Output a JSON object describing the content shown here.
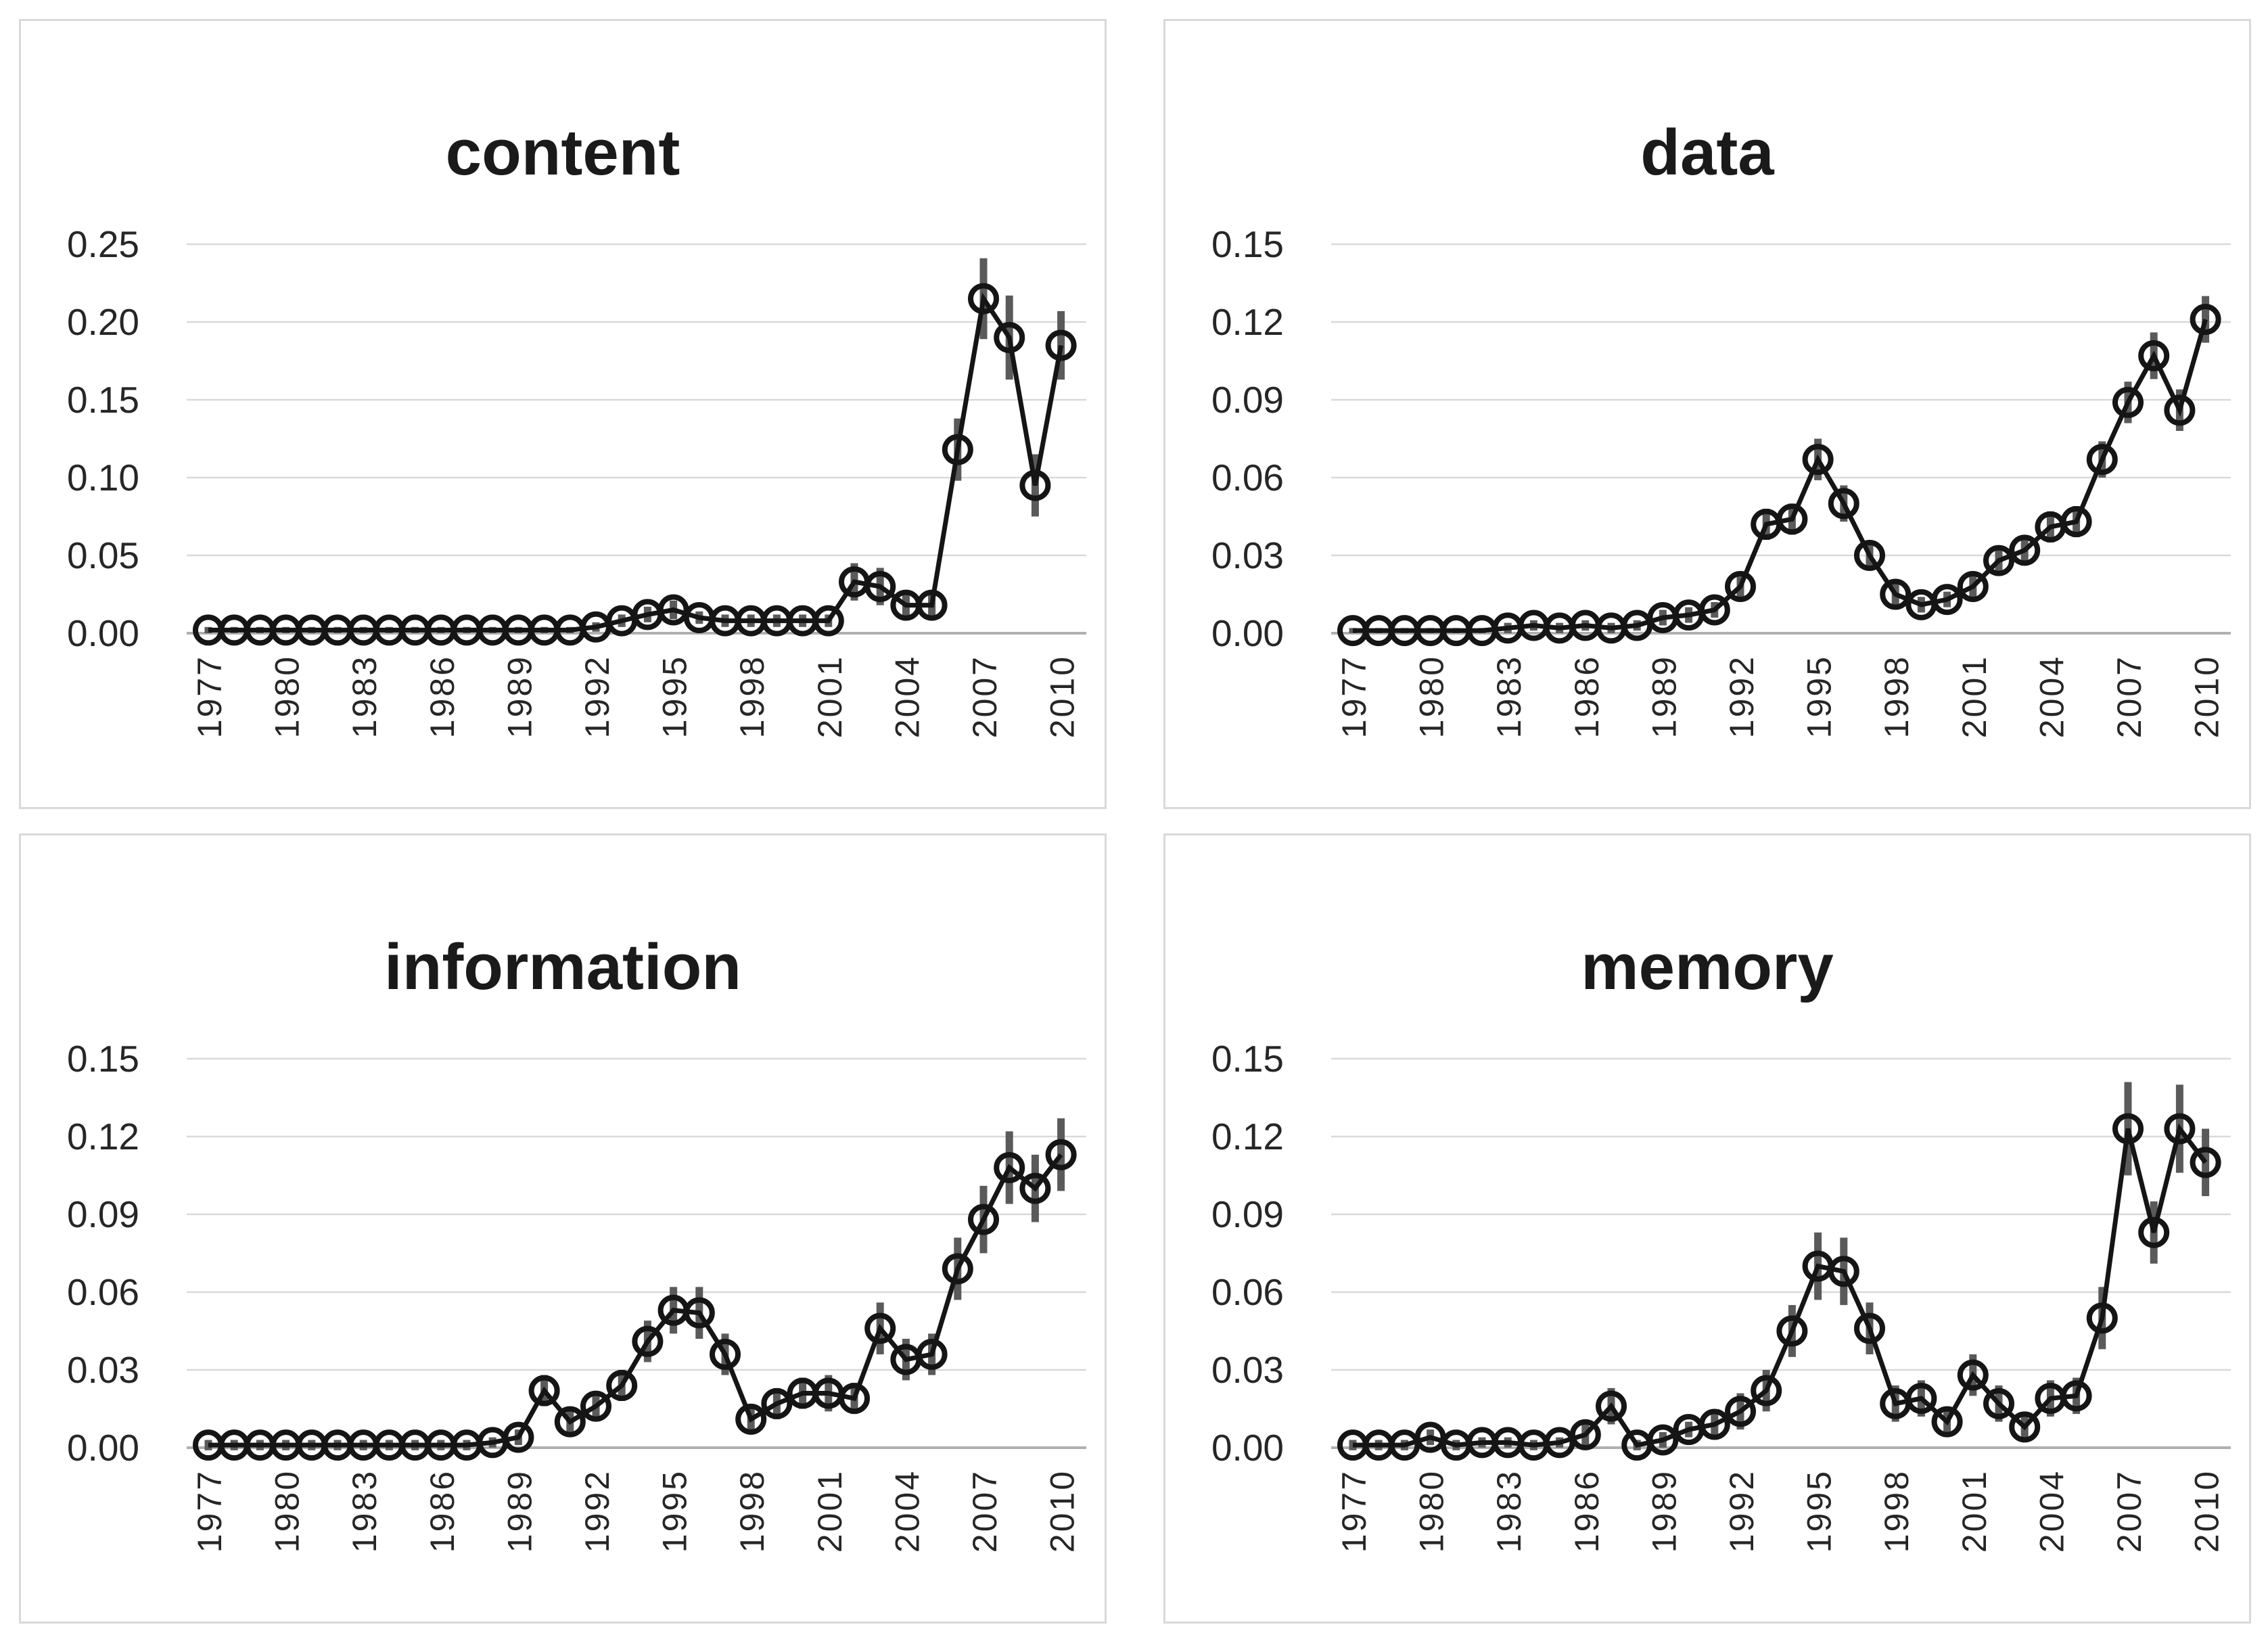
{
  "page": {
    "background": "#ffffff"
  },
  "style": {
    "line_color": "#151515",
    "marker_stroke": "#151515",
    "error_bar_color": "#5a5a5a",
    "gridline_color": "#d9d9d9",
    "zero_axis_color": "#b0b0b0",
    "panel_border_color": "#d9d9d9",
    "text_color": "#262626",
    "title_color": "#1a1a1a"
  },
  "chart_data": [
    {
      "type": "line",
      "title": "content",
      "xlabel": "",
      "ylabel": "",
      "grid": true,
      "legend": "none",
      "marker": "open-circle",
      "error_bars": true,
      "ylim": [
        0,
        0.25
      ],
      "ytick_step": 0.05,
      "ytick_labels": [
        "0.00",
        "0.05",
        "0.10",
        "0.15",
        "0.20",
        "0.25"
      ],
      "xtick_labels": [
        "1977",
        "1980",
        "1983",
        "1986",
        "1989",
        "1992",
        "1995",
        "1998",
        "2001",
        "2004",
        "2007",
        "2010"
      ],
      "x": [
        1977,
        1978,
        1979,
        1980,
        1981,
        1982,
        1983,
        1984,
        1985,
        1986,
        1987,
        1988,
        1989,
        1990,
        1991,
        1992,
        1993,
        1994,
        1995,
        1996,
        1997,
        1998,
        1999,
        2000,
        2001,
        2002,
        2003,
        2004,
        2005,
        2006,
        2007,
        2008,
        2009,
        2010
      ],
      "values": [
        0.002,
        0.002,
        0.002,
        0.002,
        0.002,
        0.002,
        0.002,
        0.002,
        0.002,
        0.002,
        0.002,
        0.002,
        0.002,
        0.002,
        0.002,
        0.004,
        0.008,
        0.012,
        0.015,
        0.01,
        0.008,
        0.008,
        0.008,
        0.008,
        0.008,
        0.033,
        0.03,
        0.018,
        0.018,
        0.118,
        0.215,
        0.19,
        0.095,
        0.185
      ],
      "errors": [
        0.002,
        0.002,
        0.002,
        0.002,
        0.002,
        0.002,
        0.002,
        0.002,
        0.002,
        0.002,
        0.002,
        0.002,
        0.002,
        0.002,
        0.002,
        0.003,
        0.004,
        0.005,
        0.006,
        0.004,
        0.004,
        0.004,
        0.004,
        0.004,
        0.004,
        0.012,
        0.012,
        0.008,
        0.008,
        0.02,
        0.026,
        0.027,
        0.02,
        0.022
      ]
    },
    {
      "type": "line",
      "title": "data",
      "xlabel": "",
      "ylabel": "",
      "grid": true,
      "legend": "none",
      "marker": "open-circle",
      "error_bars": true,
      "ylim": [
        0,
        0.15
      ],
      "ytick_step": 0.03,
      "ytick_labels": [
        "0.00",
        "0.03",
        "0.06",
        "0.09",
        "0.12",
        "0.15"
      ],
      "xtick_labels": [
        "1977",
        "1980",
        "1983",
        "1986",
        "1989",
        "1992",
        "1995",
        "1998",
        "2001",
        "2004",
        "2007",
        "2010"
      ],
      "x": [
        1977,
        1978,
        1979,
        1980,
        1981,
        1982,
        1983,
        1984,
        1985,
        1986,
        1987,
        1988,
        1989,
        1990,
        1991,
        1992,
        1993,
        1994,
        1995,
        1996,
        1997,
        1998,
        1999,
        2000,
        2001,
        2002,
        2003,
        2004,
        2005,
        2006,
        2007,
        2008,
        2009,
        2010
      ],
      "values": [
        0.001,
        0.001,
        0.001,
        0.001,
        0.001,
        0.001,
        0.002,
        0.003,
        0.002,
        0.003,
        0.002,
        0.003,
        0.006,
        0.007,
        0.009,
        0.018,
        0.042,
        0.044,
        0.067,
        0.05,
        0.03,
        0.015,
        0.011,
        0.013,
        0.018,
        0.028,
        0.032,
        0.041,
        0.043,
        0.067,
        0.089,
        0.107,
        0.086,
        0.121
      ],
      "errors": [
        0.001,
        0.001,
        0.001,
        0.001,
        0.001,
        0.001,
        0.002,
        0.002,
        0.002,
        0.002,
        0.002,
        0.002,
        0.003,
        0.003,
        0.003,
        0.004,
        0.006,
        0.006,
        0.008,
        0.007,
        0.005,
        0.004,
        0.003,
        0.003,
        0.004,
        0.005,
        0.005,
        0.006,
        0.006,
        0.007,
        0.008,
        0.009,
        0.008,
        0.009
      ]
    },
    {
      "type": "line",
      "title": "information",
      "xlabel": "",
      "ylabel": "",
      "grid": true,
      "legend": "none",
      "marker": "open-circle",
      "error_bars": true,
      "ylim": [
        0,
        0.15
      ],
      "ytick_step": 0.03,
      "ytick_labels": [
        "0.00",
        "0.03",
        "0.06",
        "0.09",
        "0.12",
        "0.15"
      ],
      "xtick_labels": [
        "1977",
        "1980",
        "1983",
        "1986",
        "1989",
        "1992",
        "1995",
        "1998",
        "2001",
        "2004",
        "2007",
        "2010"
      ],
      "x": [
        1977,
        1978,
        1979,
        1980,
        1981,
        1982,
        1983,
        1984,
        1985,
        1986,
        1987,
        1988,
        1989,
        1990,
        1991,
        1992,
        1993,
        1994,
        1995,
        1996,
        1997,
        1998,
        1999,
        2000,
        2001,
        2002,
        2003,
        2004,
        2005,
        2006,
        2007,
        2008,
        2009,
        2010
      ],
      "values": [
        0.001,
        0.001,
        0.001,
        0.001,
        0.001,
        0.001,
        0.001,
        0.001,
        0.001,
        0.001,
        0.001,
        0.002,
        0.004,
        0.022,
        0.01,
        0.016,
        0.024,
        0.041,
        0.053,
        0.052,
        0.036,
        0.011,
        0.017,
        0.021,
        0.021,
        0.019,
        0.046,
        0.034,
        0.036,
        0.069,
        0.088,
        0.108,
        0.1,
        0.113
      ],
      "errors": [
        0.002,
        0.002,
        0.002,
        0.002,
        0.002,
        0.002,
        0.002,
        0.002,
        0.002,
        0.002,
        0.002,
        0.002,
        0.003,
        0.006,
        0.004,
        0.005,
        0.006,
        0.008,
        0.009,
        0.01,
        0.008,
        0.005,
        0.006,
        0.006,
        0.007,
        0.006,
        0.01,
        0.008,
        0.008,
        0.012,
        0.013,
        0.014,
        0.013,
        0.014
      ]
    },
    {
      "type": "line",
      "title": "memory",
      "xlabel": "",
      "ylabel": "",
      "grid": true,
      "legend": "none",
      "marker": "open-circle",
      "error_bars": true,
      "ylim": [
        0,
        0.15
      ],
      "ytick_step": 0.03,
      "ytick_labels": [
        "0.00",
        "0.03",
        "0.06",
        "0.09",
        "0.12",
        "0.15"
      ],
      "xtick_labels": [
        "1977",
        "1980",
        "1983",
        "1986",
        "1989",
        "1992",
        "1995",
        "1998",
        "2001",
        "2004",
        "2007",
        "2010"
      ],
      "x": [
        1977,
        1978,
        1979,
        1980,
        1981,
        1982,
        1983,
        1984,
        1985,
        1986,
        1987,
        1988,
        1989,
        1990,
        1991,
        1992,
        1993,
        1994,
        1995,
        1996,
        1997,
        1998,
        1999,
        2000,
        2001,
        2002,
        2003,
        2004,
        2005,
        2006,
        2007,
        2008,
        2009,
        2010
      ],
      "values": [
        0.001,
        0.001,
        0.001,
        0.004,
        0.001,
        0.002,
        0.002,
        0.001,
        0.002,
        0.005,
        0.016,
        0.001,
        0.003,
        0.007,
        0.009,
        0.014,
        0.022,
        0.045,
        0.07,
        0.068,
        0.046,
        0.017,
        0.019,
        0.01,
        0.028,
        0.017,
        0.008,
        0.019,
        0.02,
        0.05,
        0.123,
        0.083,
        0.123,
        0.11
      ],
      "errors": [
        0.002,
        0.002,
        0.002,
        0.003,
        0.002,
        0.002,
        0.002,
        0.002,
        0.002,
        0.004,
        0.007,
        0.002,
        0.003,
        0.003,
        0.004,
        0.007,
        0.008,
        0.01,
        0.013,
        0.013,
        0.01,
        0.007,
        0.007,
        0.005,
        0.008,
        0.007,
        0.005,
        0.007,
        0.007,
        0.012,
        0.018,
        0.012,
        0.017,
        0.013
      ]
    }
  ]
}
